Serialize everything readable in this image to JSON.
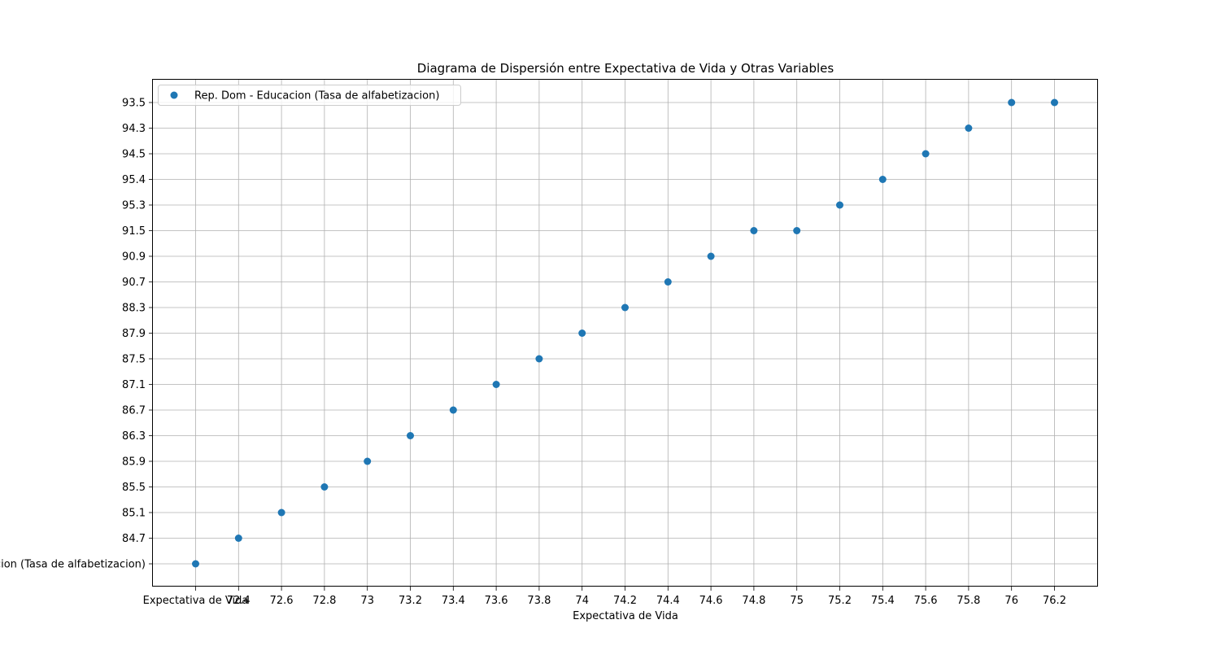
{
  "chart_data": {
    "type": "scatter",
    "title": "Diagrama de Dispersión entre Expectativa de Vida y Otras Variables",
    "xlabel": "Expectativa de Vida",
    "ylabel": "",
    "grid": true,
    "legend_position": "top-left",
    "x_ticks": [
      "Expectativa de Vida",
      "72.4",
      "72.6",
      "72.8",
      "73",
      "73.2",
      "73.4",
      "73.6",
      "73.8",
      "74",
      "74.2",
      "74.4",
      "74.6",
      "74.8",
      "75",
      "75.2",
      "75.4",
      "75.6",
      "75.8",
      "76",
      "76.2"
    ],
    "y_ticks": [
      "Educacion (Tasa de alfabetizacion)",
      "84.7",
      "85.1",
      "85.5",
      "85.9",
      "86.3",
      "86.7",
      "87.1",
      "87.5",
      "87.9",
      "88.3",
      "90.7",
      "90.9",
      "91.5",
      "95.3",
      "95.4",
      "94.5",
      "94.3",
      "93.5"
    ],
    "series": [
      {
        "name": "Rep. Dom - Educacion (Tasa de alfabetizacion)",
        "color": "#1f77b4",
        "points": [
          {
            "x": "Expectativa de Vida",
            "y": "Educacion (Tasa de alfabetizacion)"
          },
          {
            "x": "72.4",
            "y": "84.7"
          },
          {
            "x": "72.6",
            "y": "85.1"
          },
          {
            "x": "72.8",
            "y": "85.5"
          },
          {
            "x": "73",
            "y": "85.9"
          },
          {
            "x": "73.2",
            "y": "86.3"
          },
          {
            "x": "73.4",
            "y": "86.7"
          },
          {
            "x": "73.6",
            "y": "87.1"
          },
          {
            "x": "73.8",
            "y": "87.5"
          },
          {
            "x": "74",
            "y": "87.9"
          },
          {
            "x": "74.2",
            "y": "88.3"
          },
          {
            "x": "74.4",
            "y": "90.7"
          },
          {
            "x": "74.6",
            "y": "90.9"
          },
          {
            "x": "74.8",
            "y": "91.5"
          },
          {
            "x": "75",
            "y": "91.5"
          },
          {
            "x": "75.2",
            "y": "95.3"
          },
          {
            "x": "75.4",
            "y": "95.4"
          },
          {
            "x": "75.6",
            "y": "94.5"
          },
          {
            "x": "75.8",
            "y": "94.3"
          },
          {
            "x": "76",
            "y": "93.5"
          },
          {
            "x": "76.2",
            "y": "93.5"
          }
        ]
      }
    ]
  }
}
